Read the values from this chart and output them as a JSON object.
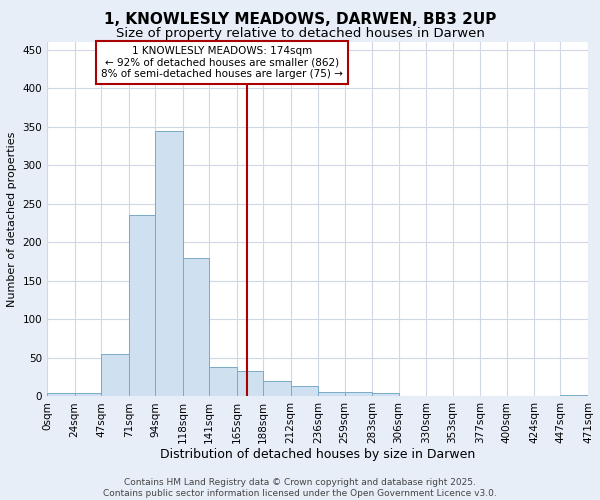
{
  "title": "1, KNOWLESLY MEADOWS, DARWEN, BB3 2UP",
  "subtitle": "Size of property relative to detached houses in Darwen",
  "xlabel": "Distribution of detached houses by size in Darwen",
  "ylabel": "Number of detached properties",
  "bin_edges": [
    0,
    24,
    47,
    71,
    94,
    118,
    141,
    165,
    188,
    212,
    236,
    259,
    283,
    306,
    330,
    353,
    377,
    400,
    424,
    447,
    471
  ],
  "bin_labels": [
    "0sqm",
    "24sqm",
    "47sqm",
    "71sqm",
    "94sqm",
    "118sqm",
    "141sqm",
    "165sqm",
    "188sqm",
    "212sqm",
    "236sqm",
    "259sqm",
    "283sqm",
    "306sqm",
    "330sqm",
    "353sqm",
    "377sqm",
    "400sqm",
    "424sqm",
    "447sqm",
    "471sqm"
  ],
  "bar_heights": [
    4,
    4,
    55,
    235,
    345,
    180,
    38,
    33,
    20,
    13,
    6,
    6,
    4,
    0,
    0,
    0,
    0,
    0,
    0,
    2
  ],
  "bar_color": "#cfe0f0",
  "bar_edge_color": "#7aaac8",
  "grid_color": "#d0d8e8",
  "property_size": 174,
  "vline_color": "#aa0000",
  "annotation_line1": "1 KNOWLESLY MEADOWS: 174sqm",
  "annotation_line2": "← 92% of detached houses are smaller (862)",
  "annotation_line3": "8% of semi-detached houses are larger (75) →",
  "annotation_box_edgecolor": "#aa0000",
  "annotation_box_facecolor": "#ffffff",
  "ylim": [
    0,
    460
  ],
  "yticks": [
    0,
    50,
    100,
    150,
    200,
    250,
    300,
    350,
    400,
    450
  ],
  "footer_text": "Contains HM Land Registry data © Crown copyright and database right 2025.\nContains public sector information licensed under the Open Government Licence v3.0.",
  "title_fontsize": 11,
  "subtitle_fontsize": 9.5,
  "xlabel_fontsize": 9,
  "ylabel_fontsize": 8,
  "tick_fontsize": 7.5,
  "annotation_fontsize": 7.5,
  "footer_fontsize": 6.5,
  "background_color": "#ffffff",
  "fig_background_color": "#e8eef8"
}
